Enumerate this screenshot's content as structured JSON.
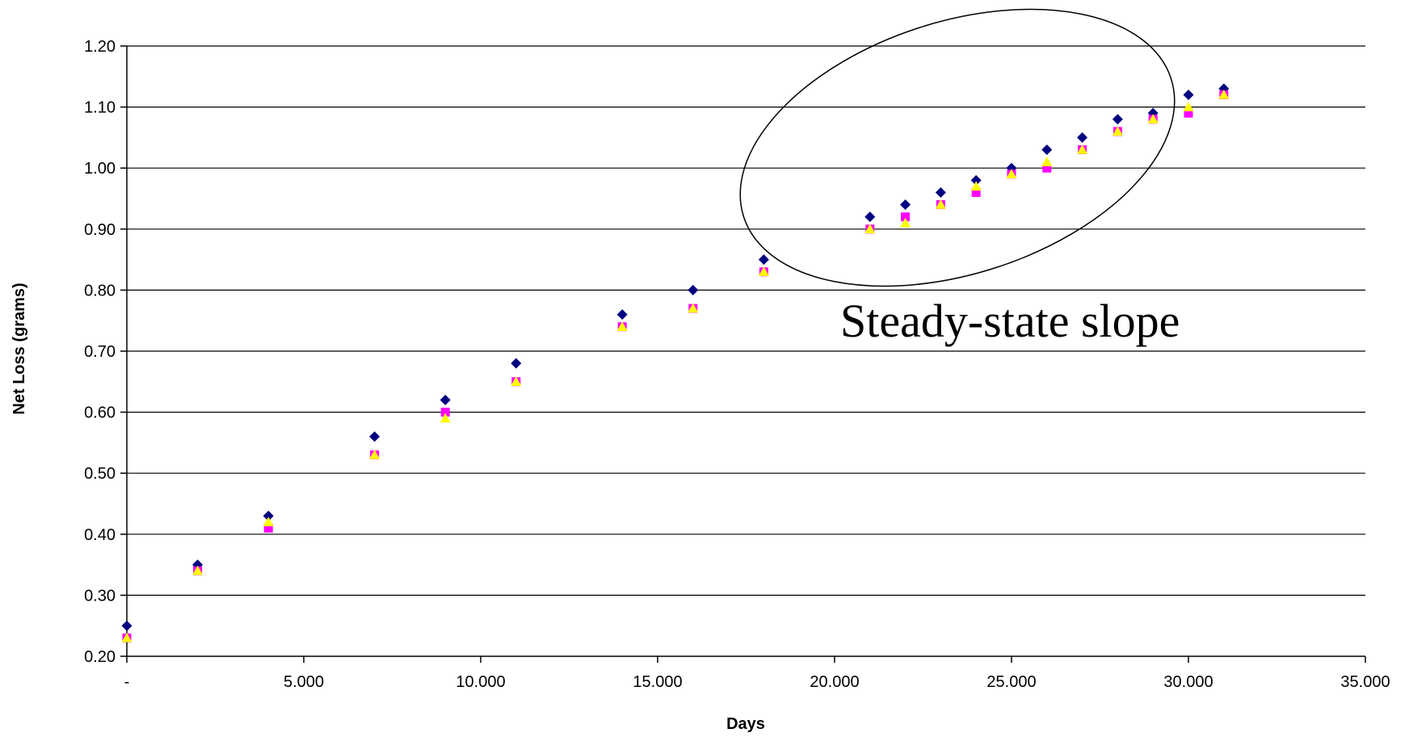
{
  "chart_data": {
    "type": "scatter",
    "xlabel": "Days",
    "ylabel": "Net Loss (grams)",
    "xlim": [
      0,
      35
    ],
    "ylim": [
      0.2,
      1.2
    ],
    "x_ticks": [
      {
        "value": 0,
        "label": "-"
      },
      {
        "value": 5,
        "label": "5.000"
      },
      {
        "value": 10,
        "label": "10.000"
      },
      {
        "value": 15,
        "label": "15.000"
      },
      {
        "value": 20,
        "label": "20.000"
      },
      {
        "value": 25,
        "label": "25.000"
      },
      {
        "value": 30,
        "label": "30.000"
      },
      {
        "value": 35,
        "label": "35.000"
      }
    ],
    "y_ticks": [
      {
        "value": 0.2,
        "label": "0.20"
      },
      {
        "value": 0.3,
        "label": "0.30"
      },
      {
        "value": 0.4,
        "label": "0.40"
      },
      {
        "value": 0.5,
        "label": "0.50"
      },
      {
        "value": 0.6,
        "label": "0.60"
      },
      {
        "value": 0.7,
        "label": "0.70"
      },
      {
        "value": 0.8,
        "label": "0.80"
      },
      {
        "value": 0.9,
        "label": "0.90"
      },
      {
        "value": 1.0,
        "label": "1.00"
      },
      {
        "value": 1.1,
        "label": "1.10"
      },
      {
        "value": 1.2,
        "label": "1.20"
      }
    ],
    "grid": "horizontal",
    "x": [
      0,
      2,
      4,
      7,
      9,
      11,
      14,
      16,
      18,
      21,
      22,
      23,
      24,
      25,
      26,
      27,
      28,
      29,
      30,
      31
    ],
    "series": [
      {
        "marker": "diamond",
        "color": "#000080",
        "values": [
          0.25,
          0.35,
          0.43,
          0.56,
          0.62,
          0.68,
          0.76,
          0.8,
          0.85,
          0.92,
          0.94,
          0.96,
          0.98,
          1.0,
          1.03,
          1.05,
          1.08,
          1.09,
          1.12,
          1.13
        ]
      },
      {
        "marker": "square",
        "color": "#FF00FF",
        "values": [
          0.23,
          0.34,
          0.41,
          0.53,
          0.6,
          0.65,
          0.74,
          0.77,
          0.83,
          0.9,
          0.92,
          0.94,
          0.96,
          0.99,
          1.0,
          1.03,
          1.06,
          1.08,
          1.09,
          1.12
        ]
      },
      {
        "marker": "triangle",
        "color": "#FFFF00",
        "values": [
          0.23,
          0.34,
          0.42,
          0.53,
          0.59,
          0.65,
          0.74,
          0.77,
          0.83,
          0.9,
          0.91,
          0.94,
          0.97,
          0.99,
          1.01,
          1.03,
          1.06,
          1.08,
          1.1,
          1.12
        ]
      }
    ],
    "annotations": [
      {
        "text": "Steady-state slope",
        "shape": "ellipse",
        "region": "days 21-31"
      }
    ]
  }
}
